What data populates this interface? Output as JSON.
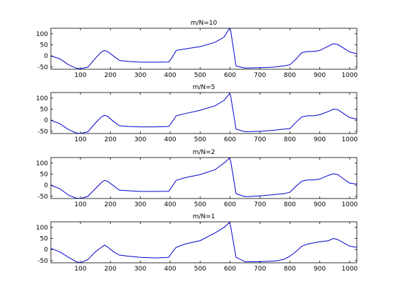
{
  "chart_data": [
    {
      "type": "line",
      "title": "m/N=10",
      "xlim": [
        1,
        1024
      ],
      "ylim": [
        -60,
        125
      ],
      "x_ticks": [
        100,
        200,
        300,
        400,
        500,
        600,
        700,
        800,
        900,
        1000
      ],
      "y_ticks": [
        -50,
        0,
        50,
        100
      ],
      "series": [
        {
          "color": "#0000cc",
          "x": [
            1,
            30,
            60,
            85,
            100,
            125,
            150,
            170,
            180,
            190,
            210,
            230,
            260,
            300,
            350,
            395,
            405,
            420,
            450,
            500,
            550,
            580,
            598,
            602,
            620,
            650,
            700,
            750,
            780,
            800,
            820,
            840,
            860,
            880,
            900,
            930,
            945,
            960,
            980,
            1000,
            1024
          ],
          "y": [
            0,
            -12,
            -40,
            -55,
            -58,
            -50,
            -10,
            18,
            25,
            20,
            0,
            -20,
            -25,
            -28,
            -28,
            -27,
            -10,
            25,
            32,
            42,
            62,
            85,
            125,
            115,
            -45,
            -55,
            -53,
            -50,
            -45,
            -40,
            -15,
            15,
            20,
            20,
            25,
            45,
            55,
            52,
            35,
            18,
            10
          ]
        }
      ]
    },
    {
      "type": "line",
      "title": "m/N=5",
      "xlim": [
        1,
        1024
      ],
      "ylim": [
        -60,
        125
      ],
      "x_ticks": [
        100,
        200,
        300,
        400,
        500,
        600,
        700,
        800,
        900,
        1000
      ],
      "y_ticks": [
        -50,
        0,
        50,
        100
      ],
      "series": [
        {
          "color": "#0000cc",
          "x": [
            1,
            30,
            60,
            85,
            100,
            125,
            150,
            170,
            180,
            190,
            210,
            230,
            260,
            300,
            350,
            395,
            405,
            420,
            450,
            500,
            550,
            580,
            598,
            602,
            620,
            650,
            700,
            750,
            780,
            800,
            820,
            840,
            860,
            880,
            900,
            930,
            945,
            960,
            980,
            1000,
            1024
          ],
          "y": [
            0,
            -15,
            -42,
            -57,
            -60,
            -52,
            -12,
            15,
            22,
            18,
            -5,
            -25,
            -28,
            -30,
            -30,
            -28,
            -10,
            20,
            30,
            45,
            65,
            90,
            120,
            110,
            -40,
            -52,
            -50,
            -45,
            -40,
            -38,
            -10,
            15,
            20,
            20,
            25,
            40,
            50,
            48,
            30,
            12,
            5
          ]
        }
      ]
    },
    {
      "type": "line",
      "title": "m/N=2",
      "xlim": [
        1,
        1024
      ],
      "ylim": [
        -60,
        125
      ],
      "x_ticks": [
        100,
        200,
        300,
        400,
        500,
        600,
        700,
        800,
        900,
        1000
      ],
      "y_ticks": [
        -50,
        0,
        50,
        100
      ],
      "series": [
        {
          "color": "#0000cc",
          "x": [
            1,
            30,
            60,
            85,
            100,
            125,
            150,
            170,
            180,
            190,
            210,
            230,
            260,
            300,
            350,
            395,
            405,
            420,
            450,
            500,
            550,
            580,
            598,
            602,
            620,
            650,
            700,
            750,
            780,
            800,
            820,
            840,
            860,
            880,
            900,
            930,
            945,
            960,
            980,
            1000,
            1024
          ],
          "y": [
            0,
            -15,
            -45,
            -58,
            -60,
            -50,
            -15,
            12,
            22,
            18,
            -2,
            -22,
            -25,
            -28,
            -28,
            -27,
            -8,
            22,
            34,
            48,
            70,
            100,
            122,
            110,
            -38,
            -52,
            -48,
            -42,
            -38,
            -32,
            -5,
            18,
            24,
            24,
            28,
            45,
            52,
            48,
            28,
            10,
            5
          ]
        }
      ]
    },
    {
      "type": "line",
      "title": "m/N=1",
      "xlim": [
        1,
        1024
      ],
      "ylim": [
        -60,
        125
      ],
      "x_ticks": [
        100,
        200,
        300,
        400,
        500,
        600,
        700,
        800,
        900,
        1000
      ],
      "y_ticks": [
        -50,
        0,
        50,
        100
      ],
      "series": [
        {
          "color": "#0000cc",
          "x": [
            1,
            30,
            60,
            85,
            100,
            125,
            150,
            170,
            180,
            190,
            210,
            230,
            260,
            300,
            350,
            395,
            405,
            420,
            450,
            500,
            550,
            580,
            598,
            602,
            620,
            650,
            700,
            750,
            780,
            800,
            820,
            840,
            860,
            880,
            900,
            930,
            945,
            960,
            980,
            1000,
            1024
          ],
          "y": [
            5,
            -10,
            -35,
            -55,
            -60,
            -45,
            -10,
            10,
            20,
            12,
            -10,
            -25,
            -30,
            -35,
            -38,
            -35,
            -15,
            10,
            25,
            40,
            75,
            100,
            122,
            105,
            -35,
            -55,
            -55,
            -52,
            -45,
            -30,
            -10,
            15,
            25,
            30,
            35,
            40,
            50,
            45,
            30,
            15,
            10
          ]
        }
      ]
    }
  ]
}
